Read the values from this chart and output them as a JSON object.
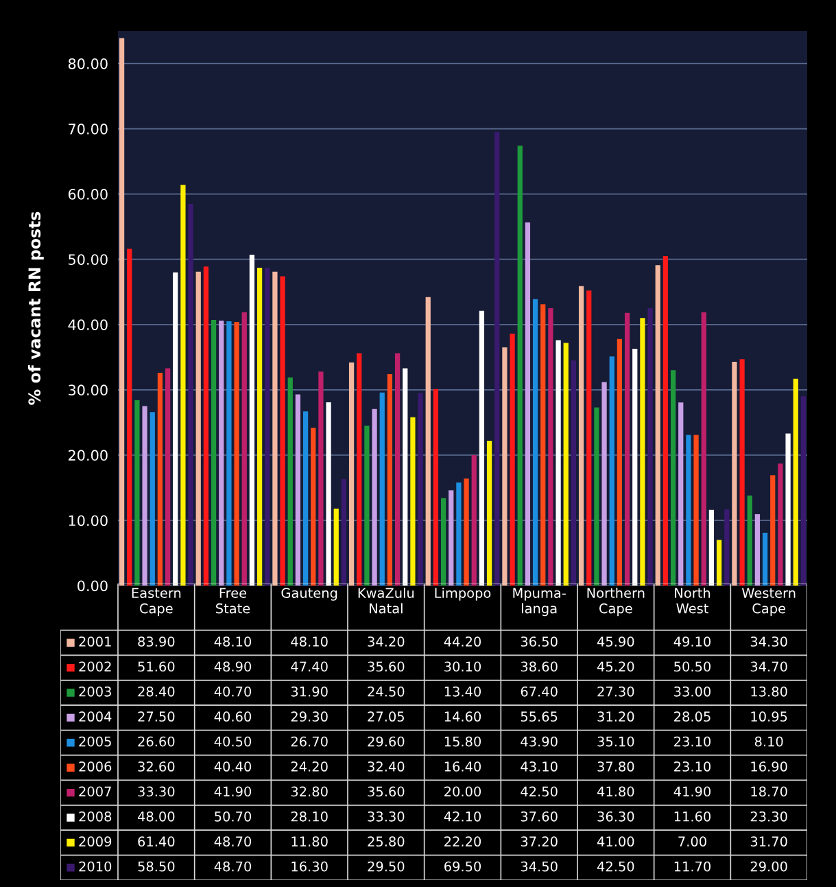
{
  "chart_data": {
    "type": "bar",
    "ylabel": "% of vacant RN posts",
    "categories": [
      "Eastern\nCape",
      "Free\nState",
      "Gauteng",
      "KwaZulu\nNatal",
      "Limpopo",
      "Mpuma-\nlanga",
      "Northern\nCape",
      "North\nWest",
      "Western\nCape"
    ],
    "series": [
      {
        "name": "2001",
        "color": "#f4b8a0",
        "values": [
          83.9,
          48.1,
          48.1,
          34.2,
          44.2,
          36.5,
          45.9,
          49.1,
          34.3
        ],
        "value_labels": [
          "83.90",
          "48.10",
          "48.10",
          "34.20",
          "44.20",
          "36.50",
          "45.90",
          "49.10",
          "34.30"
        ]
      },
      {
        "name": "2002",
        "color": "#ff1a1a",
        "values": [
          51.6,
          48.9,
          47.4,
          35.6,
          30.1,
          38.6,
          45.2,
          50.5,
          34.7
        ],
        "value_labels": [
          "51.60",
          "48.90",
          "47.40",
          "35.60",
          "30.10",
          "38.60",
          "45.20",
          "50.50",
          "34.70"
        ]
      },
      {
        "name": "2003",
        "color": "#1e9a3c",
        "values": [
          28.4,
          40.7,
          31.9,
          24.5,
          13.4,
          67.4,
          27.3,
          33.0,
          13.8
        ],
        "value_labels": [
          "28.40",
          "40.70",
          "31.90",
          "24.50",
          "13.40",
          "67.40",
          "27.30",
          "33.00",
          "13.80"
        ]
      },
      {
        "name": "2004",
        "color": "#c8a0e6",
        "values": [
          27.5,
          40.6,
          29.3,
          27.05,
          14.6,
          55.65,
          31.2,
          28.05,
          10.95
        ],
        "value_labels": [
          "27.50",
          "40.60",
          "29.30",
          "27.05",
          "14.60",
          "55.65",
          "31.20",
          "28.05",
          "10.95"
        ]
      },
      {
        "name": "2005",
        "color": "#1e8fe0",
        "values": [
          26.6,
          40.5,
          26.7,
          29.6,
          15.8,
          43.9,
          35.1,
          23.1,
          8.1
        ],
        "value_labels": [
          "26.60",
          "40.50",
          "26.70",
          "29.60",
          "15.80",
          "43.90",
          "35.10",
          "23.10",
          "8.10"
        ]
      },
      {
        "name": "2006",
        "color": "#ff4a1a",
        "values": [
          32.6,
          40.4,
          24.2,
          32.4,
          16.4,
          43.1,
          37.8,
          23.1,
          16.9
        ],
        "value_labels": [
          "32.60",
          "40.40",
          "24.20",
          "32.40",
          "16.40",
          "43.10",
          "37.80",
          "23.10",
          "16.90"
        ]
      },
      {
        "name": "2007",
        "color": "#c0206a",
        "values": [
          33.3,
          41.9,
          32.8,
          35.6,
          20.0,
          42.5,
          41.8,
          41.9,
          18.7
        ],
        "value_labels": [
          "33.30",
          "41.90",
          "32.80",
          "35.60",
          "20.00",
          "42.50",
          "41.80",
          "41.90",
          "18.70"
        ]
      },
      {
        "name": "2008",
        "color": "#ffffff",
        "values": [
          48.0,
          50.7,
          28.1,
          33.3,
          42.1,
          37.6,
          36.3,
          11.6,
          23.3
        ],
        "value_labels": [
          "48.00",
          "50.70",
          "28.10",
          "33.30",
          "42.10",
          "37.60",
          "36.30",
          "11.60",
          "23.30"
        ]
      },
      {
        "name": "2009",
        "color": "#ffee00",
        "values": [
          61.4,
          48.7,
          11.8,
          25.8,
          22.2,
          37.2,
          41.0,
          7.0,
          31.7
        ],
        "value_labels": [
          "61.40",
          "48.70",
          "11.80",
          "25.80",
          "22.20",
          "37.20",
          "41.00",
          "7.00",
          "31.70"
        ]
      },
      {
        "name": "2010",
        "color": "#3a1a6e",
        "values": [
          58.5,
          48.7,
          16.3,
          29.5,
          69.5,
          34.5,
          42.5,
          11.7,
          29.0
        ],
        "value_labels": [
          "58.50",
          "48.70",
          "16.30",
          "29.50",
          "69.50",
          "34.50",
          "42.50",
          "11.70",
          "29.00"
        ]
      }
    ],
    "ylim": [
      0,
      85
    ],
    "yticks": [
      {
        "value": 0,
        "label": "0.00"
      },
      {
        "value": 10,
        "label": "10.00"
      },
      {
        "value": 20,
        "label": "20.00"
      },
      {
        "value": 30,
        "label": "30.00"
      },
      {
        "value": 40,
        "label": "40.00"
      },
      {
        "value": 50,
        "label": "50.00"
      },
      {
        "value": 60,
        "label": "60.00"
      },
      {
        "value": 70,
        "label": "70.00"
      },
      {
        "value": 80,
        "label": "80.00"
      }
    ],
    "grid": "y",
    "legend": "bottom"
  }
}
